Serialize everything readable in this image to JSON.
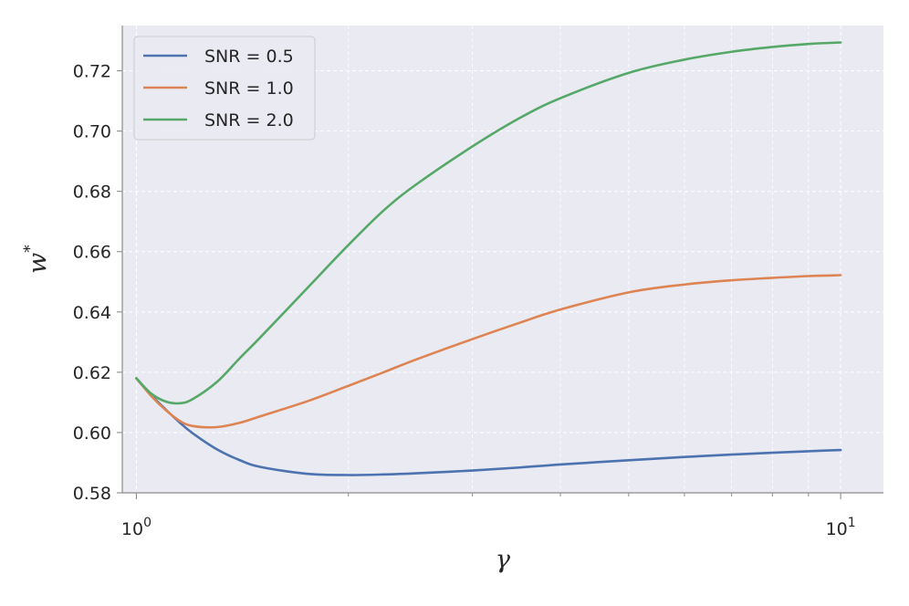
{
  "chart_data": {
    "type": "line",
    "xscale": "log",
    "xlim": [
      0.955,
      11.5
    ],
    "ylim": [
      0.58,
      0.735
    ],
    "xticks": [
      1,
      10
    ],
    "xtick_labels": [
      "10^0",
      "10^1"
    ],
    "yticks": [
      0.58,
      0.6,
      0.62,
      0.64,
      0.66,
      0.68,
      0.7,
      0.72
    ],
    "ytick_labels": [
      "0.58",
      "0.60",
      "0.62",
      "0.64",
      "0.66",
      "0.68",
      "0.70",
      "0.72"
    ],
    "xlabel": "γ",
    "ylabel": "w*",
    "grid": true,
    "legend_position": "top-left",
    "x": [
      1.0,
      1.05,
      1.1,
      1.15,
      1.2,
      1.3,
      1.4,
      1.5,
      1.75,
      2.0,
      2.25,
      2.5,
      3.0,
      3.5,
      4.0,
      5.0,
      6.0,
      7.0,
      8.0,
      9.0,
      10.0
    ],
    "series": [
      {
        "name": "SNR = 0.5",
        "color": "#4c72b0",
        "values": [
          0.618,
          0.6124,
          0.6077,
          0.6035,
          0.5999,
          0.5945,
          0.5909,
          0.5886,
          0.5863,
          0.5859,
          0.5861,
          0.5865,
          0.5874,
          0.5884,
          0.5894,
          0.5908,
          0.5919,
          0.5927,
          0.5933,
          0.5938,
          0.5942
        ]
      },
      {
        "name": "SNR = 1.0",
        "color": "#dd8452",
        "values": [
          0.618,
          0.6121,
          0.6075,
          0.604,
          0.6022,
          0.6018,
          0.6032,
          0.6054,
          0.6104,
          0.6155,
          0.6201,
          0.6243,
          0.631,
          0.6364,
          0.6408,
          0.6465,
          0.6491,
          0.6505,
          0.6513,
          0.6519,
          0.6522
        ]
      },
      {
        "name": "SNR = 2.0",
        "color": "#55a868",
        "values": [
          0.618,
          0.6129,
          0.6103,
          0.6097,
          0.611,
          0.6167,
          0.6245,
          0.6316,
          0.648,
          0.6622,
          0.6739,
          0.6824,
          0.6949,
          0.7043,
          0.7109,
          0.7193,
          0.7237,
          0.7263,
          0.7279,
          0.7289,
          0.7294
        ]
      }
    ]
  }
}
